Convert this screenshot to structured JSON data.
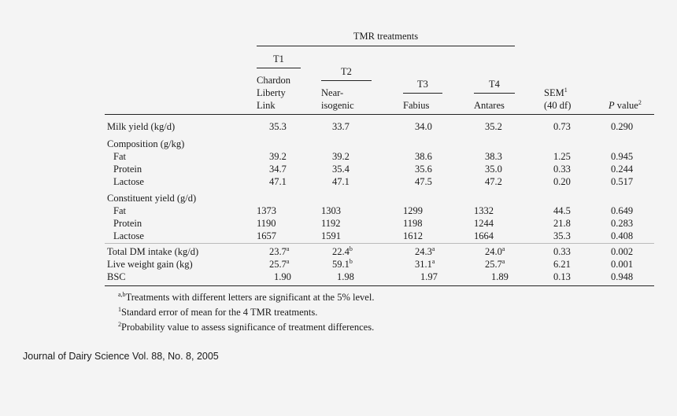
{
  "header": {
    "group_title": "TMR treatments",
    "treatments": [
      {
        "id": "T1",
        "name_lines": [
          "Chardon",
          "Liberty",
          "Link"
        ]
      },
      {
        "id": "T2",
        "name_lines": [
          "Near-",
          "isogenic"
        ]
      },
      {
        "id": "T3",
        "name_lines": [
          "Fabius"
        ]
      },
      {
        "id": "T4",
        "name_lines": [
          "Antares"
        ]
      }
    ],
    "sem_label": "SEM",
    "sem_sup": "1",
    "sem_df": "(40 df)",
    "p_label": "P",
    "p_label_rest": " value",
    "p_sup": "2"
  },
  "rows": {
    "milk": {
      "label": "Milk yield (kg/d)",
      "t1": "35.3",
      "t2": "33.7",
      "t3": "34.0",
      "t4": "35.2",
      "sem": "0.73",
      "p": "0.290"
    },
    "composition_heading": "Composition (g/kg)",
    "comp_fat": {
      "label": "Fat",
      "t1": "39.2",
      "t2": "39.2",
      "t3": "38.6",
      "t4": "38.3",
      "sem": "1.25",
      "p": "0.945"
    },
    "comp_protein": {
      "label": "Protein",
      "t1": "34.7",
      "t2": "35.4",
      "t3": "35.6",
      "t4": "35.0",
      "sem": "0.33",
      "p": "0.244"
    },
    "comp_lactose": {
      "label": "Lactose",
      "t1": "47.1",
      "t2": "47.1",
      "t3": "47.5",
      "t4": "47.2",
      "sem": "0.20",
      "p": "0.517"
    },
    "constituent_heading": "Constituent yield (g/d)",
    "cy_fat": {
      "label": "Fat",
      "t1": "1373",
      "t2": "1303",
      "t3": "1299",
      "t4": "1332",
      "sem": "44.5",
      "p": "0.649"
    },
    "cy_protein": {
      "label": "Protein",
      "t1": "1190",
      "t2": "1192",
      "t3": "1198",
      "t4": "1244",
      "sem": "21.8",
      "p": "0.283"
    },
    "cy_lactose": {
      "label": "Lactose",
      "t1": "1657",
      "t2": "1591",
      "t3": "1612",
      "t4": "1664",
      "sem": "35.3",
      "p": "0.408"
    },
    "dm_intake": {
      "label": "Total DM intake (kg/d)",
      "t1": "23.7",
      "t1s": "a",
      "t2": "22.4",
      "t2s": "b",
      "t3": "24.3",
      "t3s": "a",
      "t4": "24.0",
      "t4s": "a",
      "sem": "0.33",
      "p": "0.002"
    },
    "lw_gain": {
      "label": "Live weight gain (kg)",
      "t1": "25.7",
      "t1s": "a",
      "t2": "59.1",
      "t2s": "b",
      "t3": "31.1",
      "t3s": "a",
      "t4": "25.7",
      "t4s": "a",
      "sem": "6.21",
      "p": "0.001"
    },
    "bsc": {
      "label": "BSC",
      "t1": "1.90",
      "t2": "1.98",
      "t3": "1.97",
      "t4": "1.89",
      "sem": "0.13",
      "p": "0.948"
    }
  },
  "footnotes": {
    "f1_sup": "a,b",
    "f1": "Treatments with different letters are significant at the 5% level.",
    "f2_sup": "1",
    "f2": "Standard error of mean for the 4 TMR treatments.",
    "f3_sup": "2",
    "f3": "Probability value to assess significance of treatment differences."
  },
  "journal_line": "Journal of Dairy Science Vol. 88, No. 8, 2005"
}
